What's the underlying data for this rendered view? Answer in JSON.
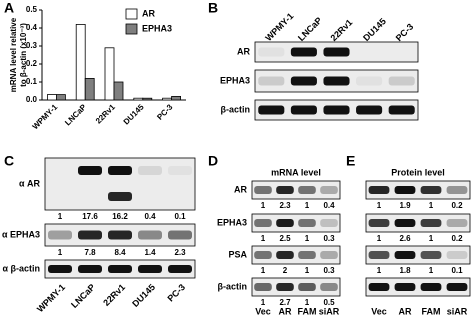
{
  "chart_data": {
    "type": "bar",
    "label": "A",
    "ylabel": [
      "mRNA level relative",
      "to β-actin (x10⁻³)"
    ],
    "categories": [
      "WPMY-1",
      "LNCaP",
      "22Rv1",
      "DU145",
      "PC-3"
    ],
    "series": [
      {
        "name": "AR",
        "color": "#ffffff",
        "values": [
          0.03,
          0.42,
          0.29,
          0.01,
          0.01
        ]
      },
      {
        "name": "EPHA3",
        "color": "#7f7f7f",
        "values": [
          0.03,
          0.12,
          0.1,
          0.01,
          0.02
        ]
      }
    ],
    "ylim": [
      0,
      0.5
    ],
    "yticks": [
      {
        "value": 0,
        "label": "0.0"
      },
      0.1,
      0.2,
      0.3,
      0.4,
      0.5
    ]
  },
  "panels": [
    {
      "label": "B",
      "columns": [
        "WPMY-1",
        "LNCaP",
        "22Rv1",
        "DU145",
        "PC-3"
      ],
      "rows": [
        {
          "label": "AR"
        },
        {
          "label": "EPHA3"
        },
        {
          "label": "β-actin"
        }
      ]
    },
    {
      "label": "C",
      "columns": [
        "WPMY-1",
        "LNCaP",
        "22Rv1",
        "DU145",
        "PC-3"
      ],
      "rows": [
        {
          "label": "α AR",
          "values": [
            1,
            17.6,
            16.2,
            0.4,
            0.1
          ]
        },
        {
          "label": "α EPHA3",
          "values": [
            1,
            7.8,
            8.4,
            1.4,
            2.3
          ]
        },
        {
          "label": "α β-actin"
        }
      ]
    },
    {
      "label": "D",
      "title": "mRNA level",
      "columns": [
        "Vec",
        "AR",
        "FAM",
        "siAR"
      ],
      "rows": [
        {
          "label": "AR",
          "values": [
            1,
            2.3,
            1,
            0.4
          ]
        },
        {
          "label": "EPHA3",
          "values": [
            1,
            2.5,
            1,
            0.3
          ]
        },
        {
          "label": "PSA",
          "values": [
            1,
            2,
            1,
            0.3
          ]
        },
        {
          "label": "β-actin",
          "values": [
            1,
            2.7,
            1,
            0.5
          ]
        }
      ]
    },
    {
      "label": "E",
      "title": "Protein level",
      "columns": [
        "Vec",
        "AR",
        "FAM",
        "siAR"
      ],
      "rows": [
        {
          "values": [
            1,
            1.9,
            1,
            0.2
          ]
        },
        {
          "values": [
            1,
            2.6,
            1,
            0.2
          ]
        },
        {
          "values": [
            1,
            1.8,
            1,
            0.1
          ]
        },
        {}
      ]
    }
  ]
}
